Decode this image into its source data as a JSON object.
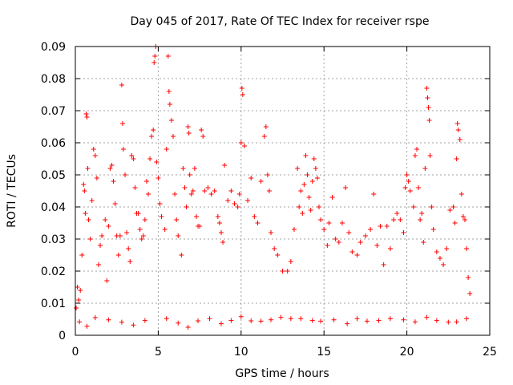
{
  "chart_data": {
    "type": "scatter",
    "title": "Day 045 of 2017, Rate Of TEC Index for receiver rspe",
    "xlabel": "GPS time / hours",
    "ylabel": "ROTI / TECUs",
    "xlim": [
      0,
      25
    ],
    "ylim": [
      0,
      0.09
    ],
    "xticks": [
      0,
      5,
      10,
      15,
      20,
      25
    ],
    "xtick_labels": [
      "0",
      "5",
      "10",
      "15",
      "20",
      "25"
    ],
    "yticks": [
      0,
      0.01,
      0.02,
      0.03,
      0.04,
      0.05,
      0.06,
      0.07,
      0.08,
      0.09
    ],
    "ytick_labels": [
      "0",
      "0.01",
      "0.02",
      "0.03",
      "0.04",
      "0.05",
      "0.06",
      "0.07",
      "0.08",
      "0.09"
    ],
    "grid": true,
    "marker": "+",
    "color": "#ff0000",
    "series": [
      {
        "points": [
          [
            0.05,
            0.0085
          ],
          [
            0.12,
            0.015
          ],
          [
            0.2,
            0.011
          ],
          [
            0.3,
            0.014
          ],
          [
            0.4,
            0.025
          ],
          [
            0.5,
            0.047
          ],
          [
            0.55,
            0.045
          ],
          [
            0.6,
            0.038
          ],
          [
            0.65,
            0.069
          ],
          [
            0.7,
            0.068
          ],
          [
            0.75,
            0.052
          ],
          [
            0.8,
            0.036
          ],
          [
            0.9,
            0.03
          ],
          [
            1.0,
            0.042
          ],
          [
            1.1,
            0.058
          ],
          [
            1.2,
            0.056
          ],
          [
            1.3,
            0.049
          ],
          [
            1.4,
            0.022
          ],
          [
            1.5,
            0.028
          ],
          [
            1.6,
            0.031
          ],
          [
            1.8,
            0.036
          ],
          [
            1.9,
            0.017
          ],
          [
            2.0,
            0.034
          ],
          [
            2.1,
            0.052
          ],
          [
            2.2,
            0.053
          ],
          [
            2.3,
            0.048
          ],
          [
            2.4,
            0.041
          ],
          [
            2.5,
            0.031
          ],
          [
            2.6,
            0.025
          ],
          [
            2.7,
            0.031
          ],
          [
            2.8,
            0.078
          ],
          [
            2.85,
            0.066
          ],
          [
            2.9,
            0.058
          ],
          [
            3.0,
            0.05
          ],
          [
            3.1,
            0.032
          ],
          [
            3.2,
            0.027
          ],
          [
            3.3,
            0.023
          ],
          [
            3.4,
            0.056
          ],
          [
            3.5,
            0.055
          ],
          [
            3.6,
            0.046
          ],
          [
            3.7,
            0.038
          ],
          [
            3.8,
            0.038
          ],
          [
            3.9,
            0.033
          ],
          [
            4.0,
            0.03
          ],
          [
            4.1,
            0.031
          ],
          [
            4.2,
            0.036
          ],
          [
            4.3,
            0.048
          ],
          [
            4.4,
            0.044
          ],
          [
            4.5,
            0.055
          ],
          [
            4.6,
            0.062
          ],
          [
            4.7,
            0.064
          ],
          [
            4.75,
            0.085
          ],
          [
            4.8,
            0.087
          ],
          [
            4.85,
            0.09
          ],
          [
            4.9,
            0.054
          ],
          [
            5.0,
            0.049
          ],
          [
            5.1,
            0.041
          ],
          [
            5.2,
            0.037
          ],
          [
            5.4,
            0.033
          ],
          [
            5.5,
            0.058
          ],
          [
            5.6,
            0.087
          ],
          [
            5.65,
            0.076
          ],
          [
            5.7,
            0.072
          ],
          [
            5.8,
            0.067
          ],
          [
            5.9,
            0.062
          ],
          [
            6.0,
            0.044
          ],
          [
            6.1,
            0.036
          ],
          [
            6.2,
            0.031
          ],
          [
            6.4,
            0.025
          ],
          [
            6.5,
            0.052
          ],
          [
            6.6,
            0.046
          ],
          [
            6.7,
            0.04
          ],
          [
            6.8,
            0.065
          ],
          [
            6.85,
            0.063
          ],
          [
            6.9,
            0.05
          ],
          [
            7.0,
            0.044
          ],
          [
            7.1,
            0.045
          ],
          [
            7.2,
            0.052
          ],
          [
            7.3,
            0.037
          ],
          [
            7.4,
            0.034
          ],
          [
            7.5,
            0.034
          ],
          [
            7.6,
            0.064
          ],
          [
            7.7,
            0.062
          ],
          [
            7.8,
            0.045
          ],
          [
            8.0,
            0.046
          ],
          [
            8.2,
            0.044
          ],
          [
            8.4,
            0.045
          ],
          [
            8.6,
            0.037
          ],
          [
            8.7,
            0.035
          ],
          [
            8.8,
            0.032
          ],
          [
            8.9,
            0.029
          ],
          [
            9.0,
            0.053
          ],
          [
            9.2,
            0.042
          ],
          [
            9.4,
            0.045
          ],
          [
            9.6,
            0.041
          ],
          [
            9.8,
            0.04
          ],
          [
            9.9,
            0.044
          ],
          [
            10.0,
            0.06
          ],
          [
            10.05,
            0.077
          ],
          [
            10.1,
            0.075
          ],
          [
            10.2,
            0.059
          ],
          [
            10.4,
            0.042
          ],
          [
            10.6,
            0.049
          ],
          [
            10.8,
            0.037
          ],
          [
            11.0,
            0.035
          ],
          [
            11.2,
            0.048
          ],
          [
            11.4,
            0.062
          ],
          [
            11.5,
            0.065
          ],
          [
            11.6,
            0.05
          ],
          [
            11.7,
            0.045
          ],
          [
            11.8,
            0.032
          ],
          [
            12.0,
            0.027
          ],
          [
            12.2,
            0.025
          ],
          [
            12.5,
            0.02
          ],
          [
            12.8,
            0.02
          ],
          [
            13.0,
            0.023
          ],
          [
            13.2,
            0.033
          ],
          [
            13.4,
            0.052
          ],
          [
            13.5,
            0.04
          ],
          [
            13.6,
            0.045
          ],
          [
            13.7,
            0.038
          ],
          [
            13.8,
            0.047
          ],
          [
            13.9,
            0.056
          ],
          [
            14.0,
            0.05
          ],
          [
            14.1,
            0.043
          ],
          [
            14.2,
            0.039
          ],
          [
            14.3,
            0.048
          ],
          [
            14.4,
            0.055
          ],
          [
            14.5,
            0.052
          ],
          [
            14.6,
            0.049
          ],
          [
            14.7,
            0.04
          ],
          [
            14.8,
            0.036
          ],
          [
            15.0,
            0.033
          ],
          [
            15.2,
            0.028
          ],
          [
            15.3,
            0.035
          ],
          [
            15.5,
            0.043
          ],
          [
            15.7,
            0.03
          ],
          [
            15.9,
            0.029
          ],
          [
            16.1,
            0.035
          ],
          [
            16.3,
            0.046
          ],
          [
            16.5,
            0.032
          ],
          [
            16.7,
            0.026
          ],
          [
            17.0,
            0.025
          ],
          [
            17.2,
            0.029
          ],
          [
            17.5,
            0.031
          ],
          [
            17.8,
            0.033
          ],
          [
            18.0,
            0.044
          ],
          [
            18.2,
            0.028
          ],
          [
            18.4,
            0.034
          ],
          [
            18.6,
            0.022
          ],
          [
            18.8,
            0.034
          ],
          [
            19.0,
            0.027
          ],
          [
            19.2,
            0.036
          ],
          [
            19.4,
            0.038
          ],
          [
            19.6,
            0.036
          ],
          [
            19.8,
            0.032
          ],
          [
            19.9,
            0.046
          ],
          [
            20.0,
            0.05
          ],
          [
            20.1,
            0.048
          ],
          [
            20.2,
            0.045
          ],
          [
            20.4,
            0.04
          ],
          [
            20.5,
            0.056
          ],
          [
            20.6,
            0.058
          ],
          [
            20.7,
            0.046
          ],
          [
            20.8,
            0.036
          ],
          [
            20.9,
            0.038
          ],
          [
            21.0,
            0.029
          ],
          [
            21.1,
            0.052
          ],
          [
            21.2,
            0.077
          ],
          [
            21.25,
            0.074
          ],
          [
            21.3,
            0.071
          ],
          [
            21.35,
            0.067
          ],
          [
            21.4,
            0.056
          ],
          [
            21.5,
            0.04
          ],
          [
            21.6,
            0.033
          ],
          [
            21.8,
            0.026
          ],
          [
            22.0,
            0.024
          ],
          [
            22.2,
            0.022
          ],
          [
            22.4,
            0.027
          ],
          [
            22.6,
            0.039
          ],
          [
            22.8,
            0.04
          ],
          [
            22.9,
            0.035
          ],
          [
            23.0,
            0.055
          ],
          [
            23.05,
            0.066
          ],
          [
            23.1,
            0.064
          ],
          [
            23.2,
            0.061
          ],
          [
            23.3,
            0.044
          ],
          [
            23.4,
            0.037
          ],
          [
            23.5,
            0.036
          ],
          [
            23.6,
            0.027
          ],
          [
            23.7,
            0.018
          ],
          [
            23.8,
            0.013
          ],
          [
            0.25,
            0.0042
          ],
          [
            0.7,
            0.0028
          ],
          [
            1.2,
            0.0055
          ],
          [
            2.0,
            0.0048
          ],
          [
            2.8,
            0.0041
          ],
          [
            3.5,
            0.0032
          ],
          [
            4.2,
            0.0046
          ],
          [
            5.5,
            0.0052
          ],
          [
            6.2,
            0.0038
          ],
          [
            6.8,
            0.0025
          ],
          [
            7.4,
            0.0045
          ],
          [
            8.1,
            0.0052
          ],
          [
            8.8,
            0.0036
          ],
          [
            9.4,
            0.0046
          ],
          [
            10.0,
            0.0058
          ],
          [
            10.6,
            0.0045
          ],
          [
            11.2,
            0.0044
          ],
          [
            11.8,
            0.0048
          ],
          [
            12.4,
            0.0056
          ],
          [
            13.0,
            0.0052
          ],
          [
            13.6,
            0.0052
          ],
          [
            14.3,
            0.0046
          ],
          [
            14.8,
            0.0044
          ],
          [
            15.6,
            0.0048
          ],
          [
            16.4,
            0.0036
          ],
          [
            17.0,
            0.0052
          ],
          [
            17.6,
            0.0044
          ],
          [
            18.3,
            0.0046
          ],
          [
            19.0,
            0.0052
          ],
          [
            19.8,
            0.0048
          ],
          [
            20.5,
            0.0042
          ],
          [
            21.2,
            0.0056
          ],
          [
            21.8,
            0.0046
          ],
          [
            22.5,
            0.0041
          ],
          [
            23.0,
            0.0042
          ],
          [
            23.6,
            0.0052
          ]
        ]
      }
    ]
  }
}
